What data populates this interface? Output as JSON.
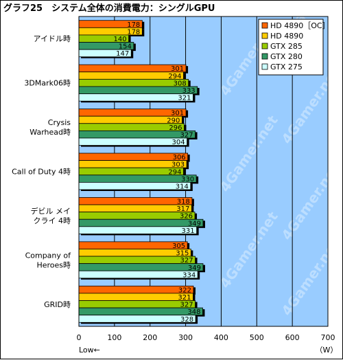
{
  "chart_data": {
    "type": "bar",
    "orientation": "horizontal",
    "title": "グラフ25　システム全体の消費電力：シングルGPU",
    "categories": [
      "アイドル時",
      "3DMark06時",
      "Crysis Warhead時",
      "Call of Duty 4時",
      "デビル メイ クライ 4時",
      "Company of Heroes時",
      "GRID時"
    ],
    "series": [
      {
        "name": "HD 4890［OC］",
        "color": "#ff6600",
        "values": [
          178,
          301,
          301,
          306,
          318,
          305,
          322
        ]
      },
      {
        "name": "HD 4890",
        "color": "#ffcc00",
        "values": [
          178,
          294,
          290,
          303,
          317,
          315,
          321
        ]
      },
      {
        "name": "GTX 285",
        "color": "#99cc00",
        "values": [
          140,
          308,
          296,
          294,
          326,
          327,
          327
        ]
      },
      {
        "name": "GTX 280",
        "color": "#339966",
        "values": [
          154,
          333,
          327,
          330,
          349,
          349,
          348
        ]
      },
      {
        "name": "GTX 275",
        "color": "#ccffff",
        "values": [
          147,
          321,
          304,
          314,
          331,
          334,
          328
        ]
      }
    ],
    "xlim": [
      0,
      700
    ],
    "xticks": [
      0,
      100,
      200,
      300,
      400,
      500,
      600,
      700
    ],
    "xlabel_left": "Low←",
    "xlabel_unit": "（W）",
    "legend_position": "top-right",
    "grid": true,
    "plot_background": "#99ccff",
    "watermark": "4Gamer.net"
  }
}
